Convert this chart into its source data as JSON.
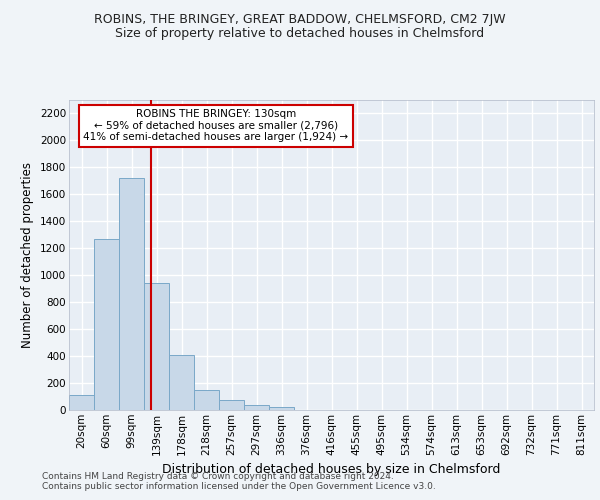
{
  "title": "ROBINS, THE BRINGEY, GREAT BADDOW, CHELMSFORD, CM2 7JW",
  "subtitle": "Size of property relative to detached houses in Chelmsford",
  "xlabel": "Distribution of detached houses by size in Chelmsford",
  "ylabel": "Number of detached properties",
  "bar_color": "#c8d8e8",
  "bar_edge_color": "#7aa8c8",
  "background_color": "#e8eef5",
  "grid_color": "#ffffff",
  "fig_background": "#f0f4f8",
  "categories": [
    "20sqm",
    "60sqm",
    "99sqm",
    "139sqm",
    "178sqm",
    "218sqm",
    "257sqm",
    "297sqm",
    "336sqm",
    "376sqm",
    "416sqm",
    "455sqm",
    "495sqm",
    "534sqm",
    "574sqm",
    "613sqm",
    "653sqm",
    "692sqm",
    "732sqm",
    "771sqm",
    "811sqm"
  ],
  "values": [
    110,
    1270,
    1720,
    940,
    410,
    150,
    75,
    35,
    25,
    0,
    0,
    0,
    0,
    0,
    0,
    0,
    0,
    0,
    0,
    0,
    0
  ],
  "ylim": [
    0,
    2300
  ],
  "yticks": [
    0,
    200,
    400,
    600,
    800,
    1000,
    1200,
    1400,
    1600,
    1800,
    2000,
    2200
  ],
  "marker_label": "ROBINS THE BRINGEY: 130sqm",
  "annotation_line1": "← 59% of detached houses are smaller (2,796)",
  "annotation_line2": "41% of semi-detached houses are larger (1,924) →",
  "annotation_box_color": "#ffffff",
  "annotation_border_color": "#cc0000",
  "red_line_color": "#cc0000",
  "footer1": "Contains HM Land Registry data © Crown copyright and database right 2024.",
  "footer2": "Contains public sector information licensed under the Open Government Licence v3.0.",
  "title_fontsize": 9,
  "subtitle_fontsize": 9,
  "ylabel_fontsize": 8.5,
  "xlabel_fontsize": 9,
  "tick_fontsize": 7.5,
  "annotation_fontsize": 7.5,
  "footer_fontsize": 6.5
}
